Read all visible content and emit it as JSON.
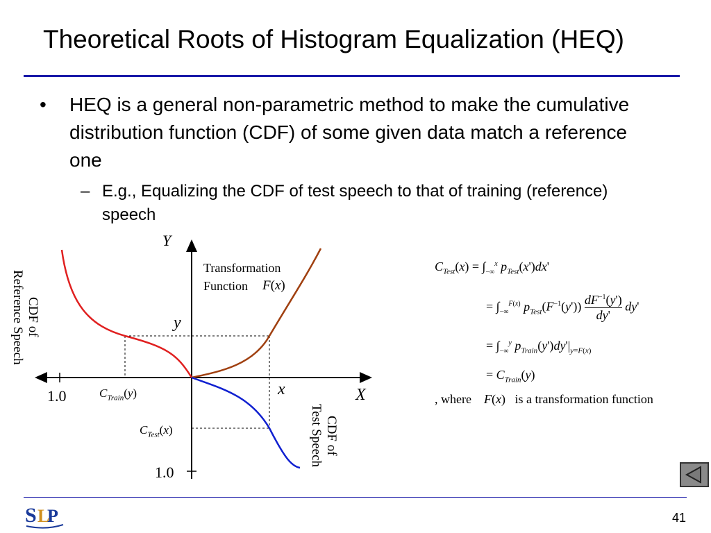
{
  "slide": {
    "title": "Theoretical Roots of Histogram Equalization (HEQ)",
    "bullet_symbol": "•",
    "bullet_text": "HEQ is a general non-parametric method to make the cumulative distribution function (CDF) of some given data match a reference one",
    "sub_symbol": "–",
    "sub_text": "E.g., Equalizing the CDF of test speech to that of training (reference) speech",
    "page_number": "41"
  },
  "diagram": {
    "axis_Y": "Y",
    "axis_X": "X",
    "y_label": "y",
    "x_label": "x",
    "left_tick": "1.0",
    "bottom_tick": "1.0",
    "transform_line1": "Transformation",
    "transform_line2": "Function",
    "ref_cdf_line1": "CDF of",
    "ref_cdf_line2": "Reference Speech",
    "test_cdf_line1": "CDF of",
    "test_cdf_line2": "Test Speech",
    "colors": {
      "reference": "#e02020",
      "transform": "#a04010",
      "test": "#1020d0"
    }
  },
  "equations": {
    "where_prefix": ", where",
    "where_suffix": "is a transformation function"
  },
  "logo_text": "SLP"
}
